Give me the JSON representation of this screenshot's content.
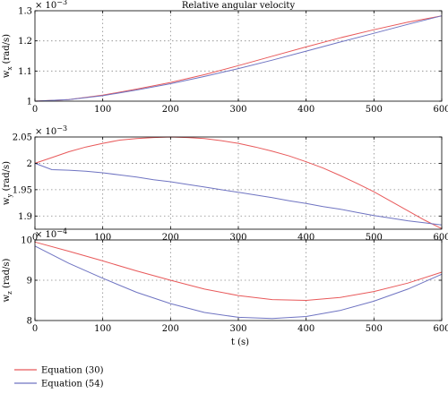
{
  "figure": {
    "xlabel": "t (s)",
    "legend": {
      "placement": "bottom-left",
      "entries": [
        {
          "name": "Equation (30)",
          "color": "#e8595a"
        },
        {
          "name": "Equation (54)",
          "color": "#6f74c2"
        }
      ]
    }
  },
  "chart_data": [
    {
      "type": "line",
      "title": "Relative angular velocity",
      "ylabel_base": "w",
      "ylabel_sub": "x",
      "ylabel_unit": " (rad/s)",
      "multiplier_base": "× 10",
      "multiplier_exp": "−3",
      "xlim": [
        0,
        600
      ],
      "ylim": [
        1.0,
        1.3
      ],
      "xticks": [
        "0",
        "100",
        "200",
        "300",
        "400",
        "500",
        "600"
      ],
      "yticks": [
        "1",
        "1.1",
        "1.2",
        "1.3"
      ],
      "grid": true,
      "series": [
        {
          "name": "Equation (30)",
          "color": "#e8595a",
          "x": [
            0,
            50,
            100,
            150,
            200,
            250,
            300,
            350,
            400,
            450,
            500,
            550,
            600
          ],
          "y": [
            1.0,
            1.005,
            1.02,
            1.04,
            1.062,
            1.088,
            1.118,
            1.149,
            1.18,
            1.21,
            1.237,
            1.262,
            1.283
          ]
        },
        {
          "name": "Equation (54)",
          "color": "#6f74c2",
          "x": [
            0,
            50,
            100,
            150,
            200,
            250,
            300,
            350,
            400,
            450,
            500,
            550,
            600
          ],
          "y": [
            1.0,
            1.005,
            1.018,
            1.037,
            1.058,
            1.082,
            1.108,
            1.136,
            1.166,
            1.196,
            1.225,
            1.255,
            1.283
          ]
        }
      ]
    },
    {
      "type": "line",
      "title": "",
      "ylabel_base": "w",
      "ylabel_sub": "y",
      "ylabel_unit": " (rad/s)",
      "multiplier_base": "× 10",
      "multiplier_exp": "−3",
      "xlim": [
        0,
        600
      ],
      "ylim": [
        1.875,
        2.05
      ],
      "xticks": [
        "0",
        "100",
        "200",
        "300",
        "400",
        "500",
        "600"
      ],
      "yticks": [
        "1.9",
        "1.95",
        "2",
        "2.05"
      ],
      "grid": true,
      "series": [
        {
          "name": "Equation (30)",
          "color": "#e8595a",
          "x": [
            0,
            25,
            50,
            75,
            100,
            125,
            150,
            175,
            200,
            225,
            250,
            275,
            300,
            325,
            350,
            375,
            400,
            425,
            450,
            475,
            500,
            525,
            550,
            575,
            600
          ],
          "y": [
            2.0,
            2.011,
            2.022,
            2.031,
            2.038,
            2.044,
            2.047,
            2.049,
            2.05,
            2.049,
            2.047,
            2.043,
            2.038,
            2.031,
            2.023,
            2.014,
            2.003,
            1.991,
            1.977,
            1.962,
            1.946,
            1.928,
            1.91,
            1.892,
            1.876
          ]
        },
        {
          "name": "Equation (54)",
          "color": "#6f74c2",
          "x": [
            0,
            25,
            50,
            75,
            100,
            125,
            150,
            175,
            200,
            225,
            250,
            275,
            300,
            325,
            350,
            375,
            400,
            425,
            450,
            475,
            500,
            525,
            550,
            575,
            600
          ],
          "y": [
            2.0,
            1.988,
            1.987,
            1.985,
            1.982,
            1.978,
            1.974,
            1.969,
            1.965,
            1.96,
            1.955,
            1.95,
            1.945,
            1.94,
            1.935,
            1.929,
            1.924,
            1.918,
            1.913,
            1.907,
            1.901,
            1.896,
            1.891,
            1.887,
            1.883
          ]
        }
      ]
    },
    {
      "type": "line",
      "title": "",
      "ylabel_base": "w",
      "ylabel_sub": "z",
      "ylabel_unit": " (rad/s)",
      "multiplier_base": "× 10",
      "multiplier_exp": "−4",
      "xlim": [
        0,
        600
      ],
      "ylim": [
        8,
        10
      ],
      "xticks": [
        "0",
        "100",
        "200",
        "300",
        "400",
        "500",
        "600"
      ],
      "yticks": [
        "8",
        "9",
        "10"
      ],
      "grid": true,
      "series": [
        {
          "name": "Equation (30)",
          "color": "#e8595a",
          "x": [
            0,
            50,
            100,
            150,
            200,
            250,
            300,
            350,
            400,
            450,
            500,
            550,
            600
          ],
          "y": [
            9.95,
            9.72,
            9.48,
            9.23,
            9.0,
            8.78,
            8.62,
            8.52,
            8.5,
            8.57,
            8.72,
            8.93,
            9.2
          ]
        },
        {
          "name": "Equation (54)",
          "color": "#6f74c2",
          "x": [
            0,
            50,
            100,
            150,
            200,
            250,
            300,
            350,
            400,
            450,
            500,
            550,
            600
          ],
          "y": [
            9.85,
            9.42,
            9.05,
            8.7,
            8.42,
            8.2,
            8.08,
            8.05,
            8.1,
            8.25,
            8.48,
            8.78,
            9.15
          ]
        }
      ]
    }
  ]
}
